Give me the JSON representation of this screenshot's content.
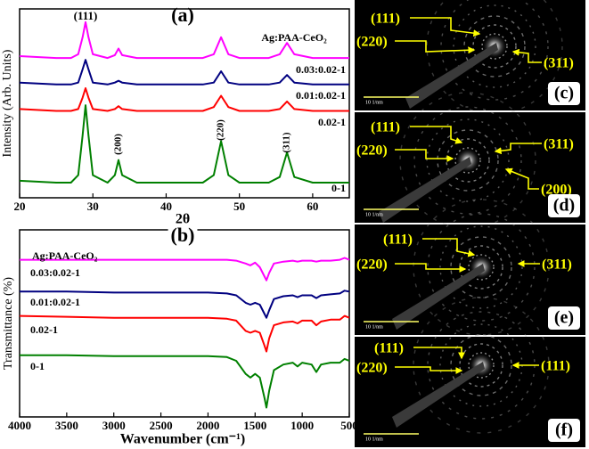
{
  "chart_data": [
    {
      "type": "line",
      "title": "(a)",
      "legend_title": "Ag:PAA-CeO₂",
      "x_label": "2θ",
      "y_label": "Intensity (Arb. Units)",
      "annotations": [
        "(111)",
        "(200)",
        "(220)",
        "(311)"
      ],
      "x": [
        20,
        25,
        27,
        28,
        28.6,
        29,
        29.4,
        30,
        32,
        33,
        33.5,
        34,
        36,
        40,
        45,
        46.5,
        47.5,
        48.5,
        50,
        54,
        55.5,
        56.5,
        57.5,
        60,
        65
      ],
      "xlim": [
        20,
        65
      ],
      "xticks": [
        20,
        30,
        40,
        50,
        60
      ],
      "ylim": [
        0,
        100
      ],
      "series": [
        {
          "name": "0.03:0.02-1",
          "color": "#ff00ff",
          "values": [
            75,
            74,
            74,
            76,
            85,
            93,
            85,
            76,
            74,
            75.5,
            79,
            75.5,
            74,
            74,
            74,
            76,
            85,
            76,
            74,
            74,
            76,
            82,
            76,
            74,
            74
          ]
        },
        {
          "name": "0.01:0.02-1",
          "color": "#000080",
          "values": [
            61,
            60,
            60,
            61,
            68,
            73,
            68,
            61,
            60,
            61,
            62,
            61,
            60,
            60,
            60,
            61,
            67,
            61,
            60,
            60,
            61,
            65,
            61,
            60,
            60
          ]
        },
        {
          "name": "0.02-1",
          "color": "#ff0000",
          "values": [
            47,
            46,
            46,
            47,
            53,
            58,
            53,
            47,
            46,
            47,
            48.5,
            47,
            46,
            46,
            46,
            48,
            54,
            48,
            46,
            46,
            47,
            51,
            47,
            46,
            46
          ]
        },
        {
          "name": "0-1",
          "color": "#008000",
          "values": [
            9,
            8,
            8,
            12,
            33,
            49,
            33,
            12,
            8,
            12,
            20,
            12,
            8,
            8,
            8,
            12,
            30,
            12,
            8,
            8,
            11,
            24,
            11,
            8,
            8
          ]
        }
      ]
    },
    {
      "type": "line",
      "title": "(b)",
      "legend_title": "Ag:PAA-CeO₂",
      "x_label": "Wavenumber (cm⁻¹)",
      "y_label": "Transmittance (%)",
      "x": [
        4000,
        3500,
        3000,
        2500,
        2000,
        1800,
        1700,
        1600,
        1550,
        1500,
        1450,
        1400,
        1380,
        1350,
        1300,
        1200,
        1100,
        1050,
        1000,
        900,
        850,
        800,
        700,
        600,
        550,
        500
      ],
      "xlim": [
        4000,
        500
      ],
      "xticks": [
        4000,
        3500,
        3000,
        2500,
        2000,
        1500,
        1000,
        500
      ],
      "ylim": [
        0,
        100
      ],
      "series": [
        {
          "name": "0.03:0.02-1",
          "color": "#ff00ff",
          "values": [
            84,
            84,
            84,
            84,
            84,
            84,
            83.5,
            82,
            81,
            82.5,
            80,
            75,
            73,
            77,
            82,
            83,
            83.5,
            83,
            83.5,
            83.5,
            83,
            83.5,
            83.5,
            84,
            85,
            84
          ]
        },
        {
          "name": "0.01:0.02-1",
          "color": "#000080",
          "values": [
            67,
            67,
            66.5,
            66.5,
            66.5,
            66,
            65,
            61,
            60,
            61,
            60,
            55,
            53,
            57,
            63,
            64.5,
            65,
            64,
            65,
            65,
            63.5,
            65,
            65.5,
            66,
            67.5,
            67
          ]
        },
        {
          "name": "0.02-1",
          "color": "#ff0000",
          "values": [
            54,
            53.5,
            53,
            53,
            53,
            52.5,
            51.5,
            46,
            45,
            46,
            45,
            38,
            35,
            42,
            49,
            50.5,
            51,
            50,
            51.5,
            51.5,
            49,
            51,
            52,
            52,
            54,
            53
          ]
        },
        {
          "name": "0-1",
          "color": "#008000",
          "values": [
            33,
            33,
            32.5,
            32.5,
            32.5,
            32,
            30,
            23,
            21,
            23,
            21,
            10,
            5,
            14,
            25,
            28,
            29,
            27,
            29,
            28,
            24,
            28,
            29,
            29,
            31,
            30
          ]
        }
      ]
    }
  ],
  "panels": [
    {
      "label": "(c)",
      "scale_bar": "10 1/nm",
      "indices": [
        "(111)",
        "(220)",
        "(311)"
      ]
    },
    {
      "label": "(d)",
      "scale_bar": "10 1/nm",
      "indices": [
        "(111)",
        "(220)",
        "(311)",
        "(200)"
      ]
    },
    {
      "label": "(e)",
      "scale_bar": "10 1/nm",
      "indices": [
        "(111)",
        "(220)",
        "(311)"
      ]
    },
    {
      "label": "(f)",
      "scale_bar": "10 1/nm",
      "indices": [
        "(111)",
        "(220)",
        "(111)"
      ]
    }
  ]
}
